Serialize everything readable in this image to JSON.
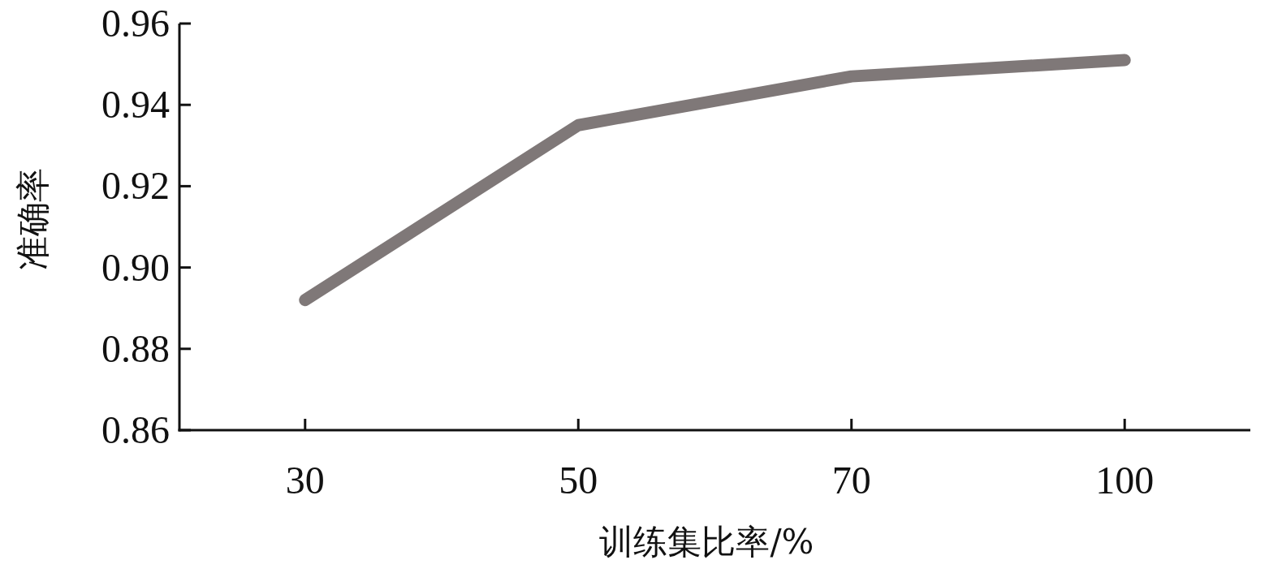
{
  "chart_data": {
    "type": "line",
    "xlabel": "训练集比率/%",
    "ylabel": "准确率",
    "categories": [
      "30",
      "50",
      "70",
      "100"
    ],
    "values": [
      0.892,
      0.935,
      0.947,
      0.951
    ],
    "color": "#7f7878",
    "ylim": [
      0.86,
      0.96
    ],
    "yticks": [
      {
        "value": 0.86,
        "label": "0.86"
      },
      {
        "value": 0.88,
        "label": "0.88"
      },
      {
        "value": 0.9,
        "label": "0.90"
      },
      {
        "value": 0.92,
        "label": "0.92"
      },
      {
        "value": 0.94,
        "label": "0.94"
      },
      {
        "value": 0.96,
        "label": "0.96"
      }
    ]
  }
}
